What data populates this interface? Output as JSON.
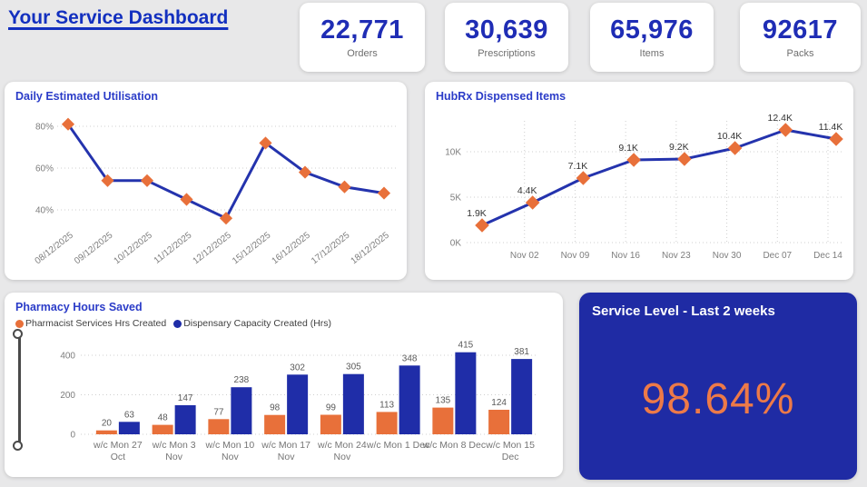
{
  "colors": {
    "page_background": "#e8e8e9",
    "card_background": "#ffffff",
    "title_blue": "#1330bf",
    "kpi_number_blue": "#1f2db5",
    "panel_title_blue": "#2b3cc8",
    "line_blue": "#2433ad",
    "accent_orange": "#e8703a",
    "bar_blue": "#1f2da8",
    "service_card_blue": "#1f2ba4",
    "service_value_orange": "#ed7a48",
    "axis_gray": "#7d7d7d"
  },
  "header": {
    "title": "Your Service Dashboard",
    "kpis": [
      {
        "value": "22,771",
        "label": "Orders"
      },
      {
        "value": "30,639",
        "label": "Prescriptions"
      },
      {
        "value": "65,976",
        "label": "Items"
      },
      {
        "value": "92617",
        "label": "Packs"
      }
    ]
  },
  "panels": {
    "utilisation": {
      "title": "Daily Estimated Utilisation"
    },
    "hubrx": {
      "title": "HubRx Dispensed Items"
    },
    "hours": {
      "title": "Pharmacy Hours Saved",
      "legend": [
        {
          "label": "Pharmacist Services Hrs Created",
          "color": "#e8703a"
        },
        {
          "label": "Dispensary Capacity Created (Hrs)",
          "color": "#1f2da8"
        }
      ]
    },
    "service": {
      "title": "Service Level - Last 2 weeks",
      "value": "98.64%"
    }
  },
  "chart_data": [
    {
      "id": "utilisation",
      "type": "line",
      "title": "Daily Estimated Utilisation",
      "x": [
        "08/12/2025",
        "09/12/2025",
        "10/12/2025",
        "11/12/2025",
        "12/12/2025",
        "15/12/2025",
        "16/12/2025",
        "17/12/2025",
        "18/12/2025"
      ],
      "values_pct": [
        81,
        54,
        54,
        45,
        36,
        72,
        58,
        51,
        48
      ],
      "yticks_pct": [
        80,
        60,
        40
      ],
      "ylim_pct": [
        30,
        88
      ],
      "grid": "horizontal dotted",
      "line_color": "#2433ad",
      "marker": "diamond",
      "marker_color": "#e8703a"
    },
    {
      "id": "hubrx",
      "type": "line",
      "title": "HubRx Dispensed Items",
      "points": [
        1900,
        4400,
        7100,
        9100,
        9200,
        10400,
        12400,
        11400
      ],
      "point_labels": [
        "1.9K",
        "4.4K",
        "7.1K",
        "9.1K",
        "9.2K",
        "10.4K",
        "12.4K",
        "11.4K"
      ],
      "x_tick_labels": [
        "Nov 02",
        "Nov 09",
        "Nov 16",
        "Nov 23",
        "Nov 30",
        "Dec 07",
        "Dec 14"
      ],
      "first_point_has_no_axis_label": true,
      "yticks": [
        0,
        5000,
        10000
      ],
      "ytick_labels": [
        "0K",
        "5K",
        "10K"
      ],
      "grid": "horizontal and vertical dotted",
      "line_color": "#2433ad",
      "marker": "diamond",
      "marker_color": "#e8703a"
    },
    {
      "id": "hours",
      "type": "bar",
      "title": "Pharmacy Hours Saved",
      "categories": [
        "w/c Mon 27 Oct",
        "w/c Mon 3 Nov",
        "w/c Mon 10 Nov",
        "w/c Mon 17 Nov",
        "w/c Mon 24 Nov",
        "w/c Mon 1 Dec",
        "w/c Mon 8 Dec",
        "w/c Mon 15 Dec"
      ],
      "category_lines": [
        [
          "w/c Mon 27",
          "Oct"
        ],
        [
          "w/c Mon 3",
          "Nov"
        ],
        [
          "w/c Mon 10",
          "Nov"
        ],
        [
          "w/c Mon 17",
          "Nov"
        ],
        [
          "w/c Mon 24",
          "Nov"
        ],
        [
          "w/c Mon 1 Dec"
        ],
        [
          "w/c Mon 8 Dec"
        ],
        [
          "w/c Mon 15",
          "Dec"
        ]
      ],
      "series": [
        {
          "name": "Pharmacist Services Hrs Created",
          "color": "#e8703a",
          "values": [
            20,
            48,
            77,
            98,
            99,
            113,
            135,
            124
          ]
        },
        {
          "name": "Dispensary Capacity Created (Hrs)",
          "color": "#1f2da8",
          "values": [
            63,
            147,
            238,
            302,
            305,
            348,
            415,
            381
          ]
        }
      ],
      "yticks": [
        0,
        200,
        400
      ],
      "grid": "horizontal dotted",
      "legend_position": "top"
    },
    {
      "id": "service",
      "type": "kpi",
      "title": "Service Level - Last 2 weeks",
      "value": "98.64%"
    }
  ]
}
